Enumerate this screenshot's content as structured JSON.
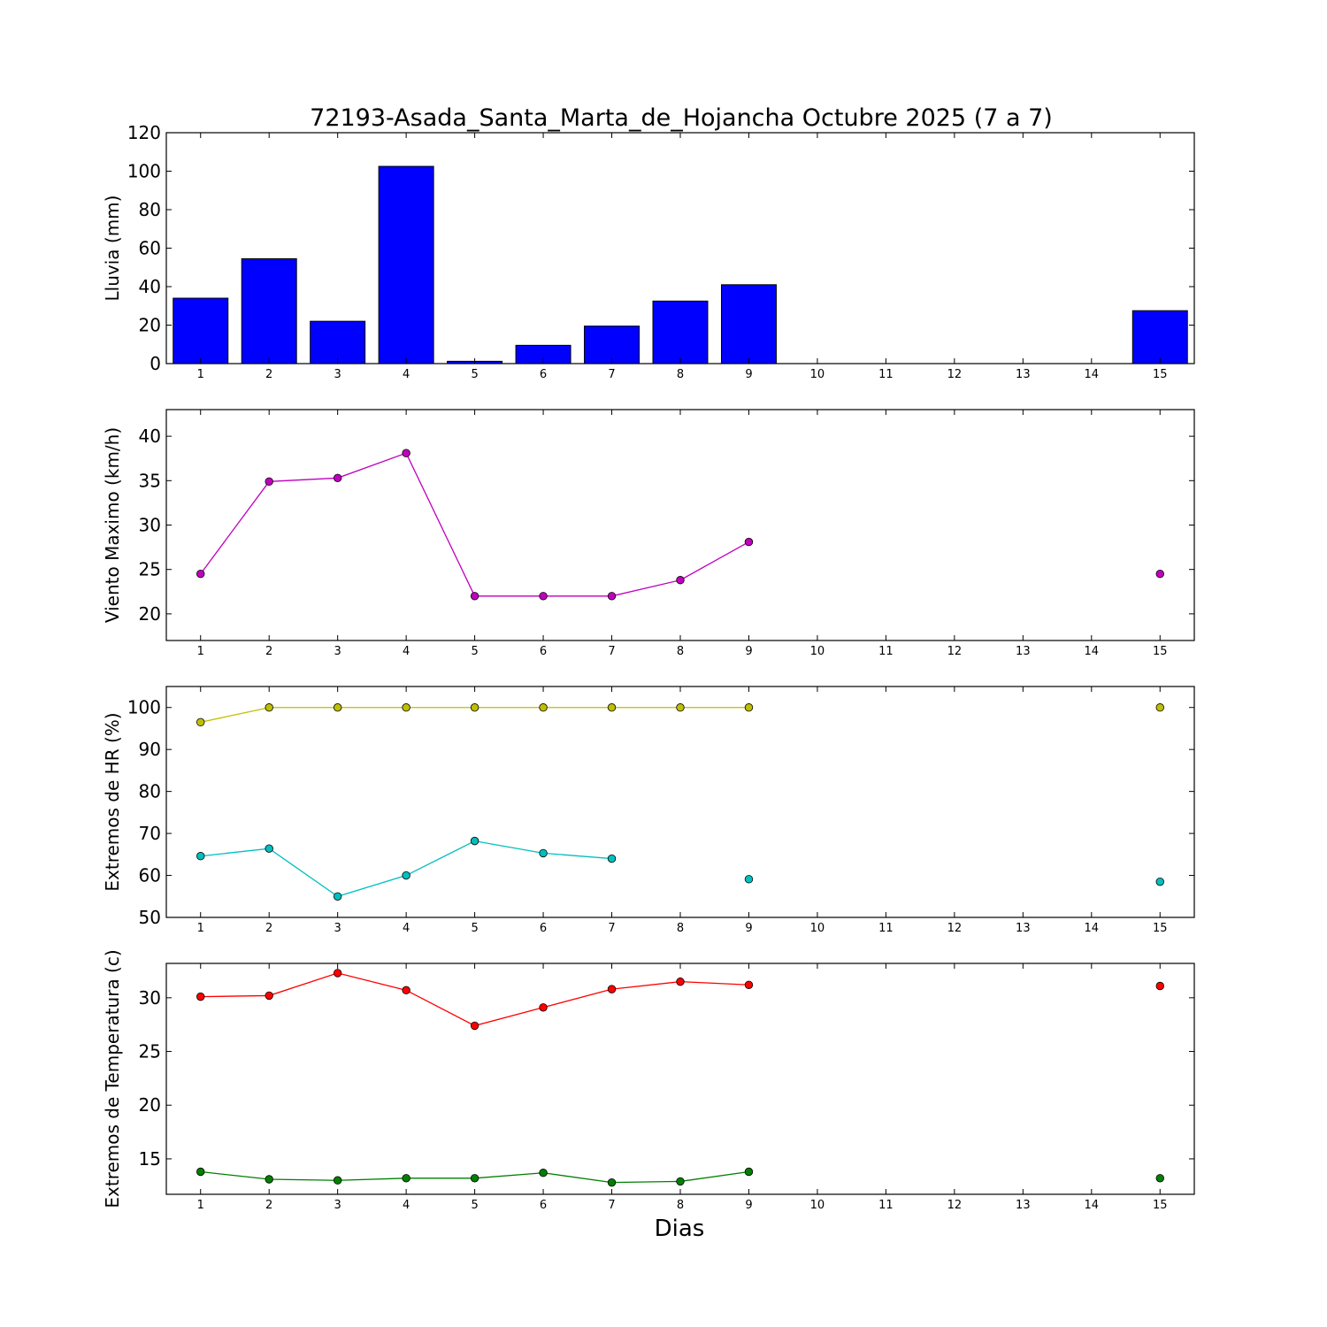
{
  "chart_data": {
    "title": "72193-Asada_Santa_Marta_de_Hojancha Octubre 2025  (7 a 7)",
    "xlabel": "Dias",
    "x_ticks": [
      1,
      2,
      3,
      4,
      5,
      6,
      7,
      8,
      9,
      10,
      11,
      12,
      13,
      14,
      15
    ],
    "panels": [
      {
        "type": "bar",
        "ylabel": "Lluvia (mm)",
        "ylim": [
          0,
          120
        ],
        "yticks": [
          0,
          20,
          40,
          60,
          80,
          100,
          120
        ],
        "series": [
          {
            "color": "#0000ff",
            "x": [
              1,
              2,
              3,
              4,
              5,
              6,
              7,
              8,
              9,
              15
            ],
            "values": [
              34,
              54.5,
              22,
              102.5,
              1.2,
              9.5,
              19.5,
              32.5,
              41,
              27.5
            ]
          }
        ]
      },
      {
        "type": "line",
        "ylabel": "Viento Maximo (km/h)",
        "ylim": [
          17,
          43
        ],
        "yticks": [
          20,
          25,
          30,
          35,
          40
        ],
        "series": [
          {
            "color": "#bf00bf",
            "x": [
              1,
              2,
              3,
              4,
              5,
              6,
              7,
              8,
              9,
              15
            ],
            "values": [
              24.5,
              34.9,
              35.3,
              38.1,
              22,
              22,
              22,
              23.8,
              28.1,
              24.5
            ],
            "line_groups": [
              [
                1,
                9
              ]
            ]
          }
        ]
      },
      {
        "type": "line",
        "ylabel": "Extremos de HR (%)",
        "ylim": [
          50,
          105
        ],
        "yticks": [
          50,
          60,
          70,
          80,
          90,
          100
        ],
        "series": [
          {
            "color": "#bfbf00",
            "x": [
              1,
              2,
              3,
              4,
              5,
              6,
              7,
              8,
              9,
              15
            ],
            "values": [
              96.5,
              100,
              100,
              100,
              100,
              100,
              100,
              100,
              100,
              100
            ],
            "line_groups": [
              [
                1,
                9
              ]
            ]
          },
          {
            "color": "#00bfbf",
            "x": [
              1,
              2,
              3,
              4,
              5,
              6,
              7,
              9,
              15
            ],
            "values": [
              64.6,
              66.4,
              55,
              60,
              68.2,
              65.3,
              64,
              59.1,
              58.5
            ],
            "line_groups": [
              [
                1,
                7
              ]
            ]
          }
        ]
      },
      {
        "type": "line",
        "ylabel": "Extremos de Temperatura (c)",
        "ylim": [
          11.7,
          33.2
        ],
        "yticks": [
          15,
          20,
          25,
          30
        ],
        "series": [
          {
            "color": "#ff0000",
            "x": [
              1,
              2,
              3,
              4,
              5,
              6,
              7,
              8,
              9,
              15
            ],
            "values": [
              30.1,
              30.2,
              32.3,
              30.7,
              27.4,
              29.1,
              30.8,
              31.5,
              31.2,
              31.1
            ],
            "line_groups": [
              [
                1,
                9
              ]
            ]
          },
          {
            "color": "#008000",
            "x": [
              1,
              2,
              3,
              4,
              5,
              6,
              7,
              8,
              9,
              15
            ],
            "values": [
              13.8,
              13.1,
              13,
              13.2,
              13.2,
              13.7,
              12.8,
              12.9,
              13.8,
              13.2
            ],
            "line_groups": [
              [
                1,
                9
              ]
            ]
          }
        ]
      }
    ]
  }
}
